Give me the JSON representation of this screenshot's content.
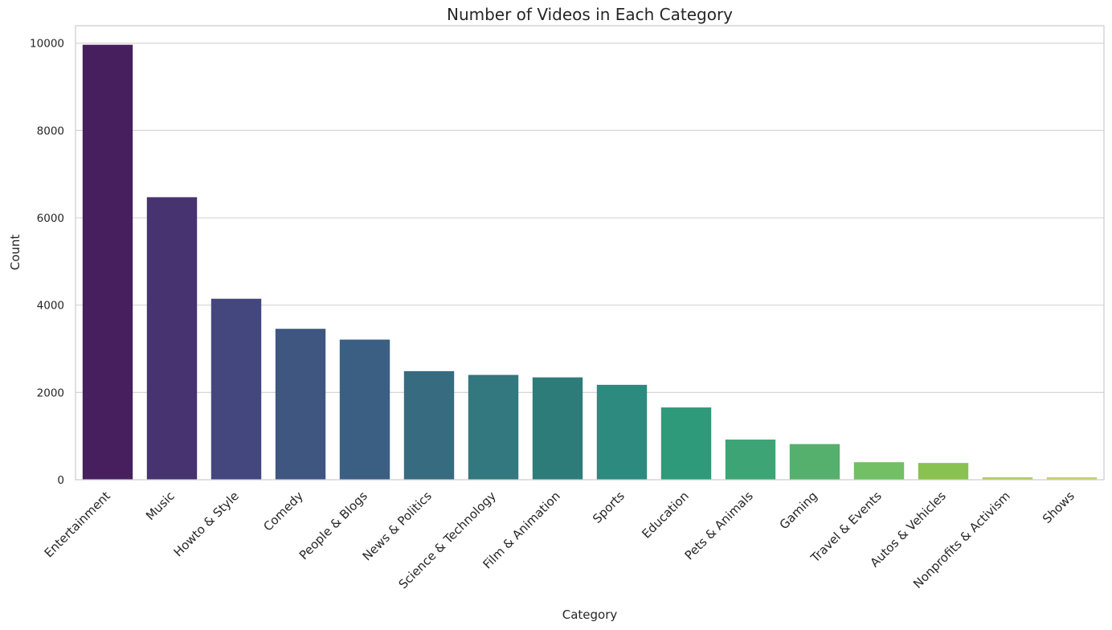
{
  "chart_data": {
    "type": "bar",
    "title": "Number of Videos in Each Category",
    "xlabel": "Category",
    "ylabel": "Count",
    "ylim": [
      0,
      10400
    ],
    "yticks": [
      0,
      2000,
      4000,
      6000,
      8000,
      10000
    ],
    "grid": "horizontal",
    "categories": [
      "Entertainment",
      "Music",
      "Howto & Style",
      "Comedy",
      "People & Blogs",
      "News & Politics",
      "Science & Technology",
      "Film & Animation",
      "Sports",
      "Education",
      "Pets & Animals",
      "Gaming",
      "Travel & Events",
      "Autos & Vehicles",
      "Nonprofits & Activism",
      "Shows"
    ],
    "values": [
      9964,
      6472,
      4146,
      3457,
      3210,
      2487,
      2401,
      2345,
      2174,
      1656,
      920,
      817,
      402,
      384,
      57,
      57
    ],
    "colors": [
      "#481f5e",
      "#46336f",
      "#43477e",
      "#3f5681",
      "#3b5f82",
      "#366b80",
      "#33777f",
      "#2e7c7a",
      "#2c8a7f",
      "#2f9a7a",
      "#3da575",
      "#56b06d",
      "#73bf66",
      "#8ac252",
      "#b3cc63",
      "#c7d06a"
    ]
  }
}
